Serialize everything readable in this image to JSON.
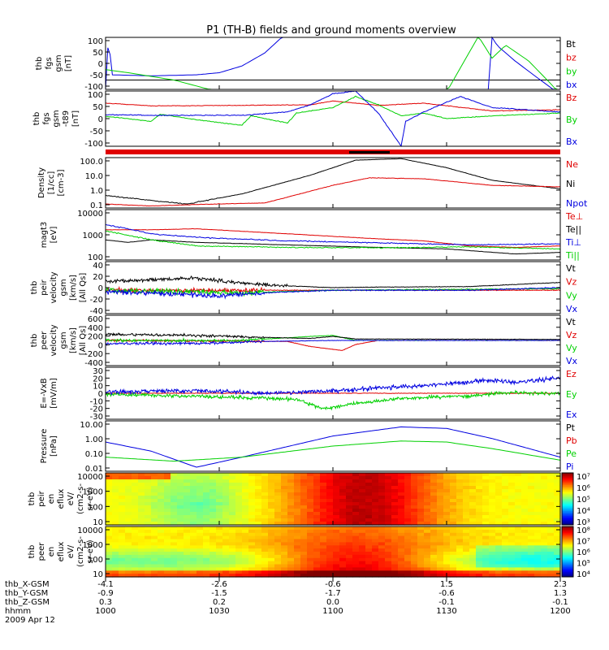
{
  "title": "P1 (TH-B) fields and ground moments overview",
  "colors": {
    "black": "#000000",
    "red": "#e00000",
    "green": "#00d000",
    "blue": "#0000e0"
  },
  "panels": [
    {
      "id": "fgs",
      "ylabel": [
        "thb",
        "fgs",
        "gsm",
        "[nT]"
      ],
      "yticks": [
        "100",
        "50",
        "0",
        "-50",
        "-100"
      ],
      "legend": [
        {
          "t": "Bt",
          "c": "black"
        },
        {
          "t": "bz",
          "c": "red"
        },
        {
          "t": "by",
          "c": "green"
        },
        {
          "t": "bx",
          "c": "blue"
        }
      ]
    },
    {
      "id": "fgs2",
      "ylabel": [
        "thb",
        "fgs",
        "gsm",
        "-t89",
        "[nT]"
      ],
      "yticks": [
        "100",
        "50",
        "0",
        "-50",
        "-100"
      ],
      "legend": [
        {
          "t": "Bz",
          "c": "red"
        },
        {
          "t": "By",
          "c": "green"
        },
        {
          "t": "Bx",
          "c": "blue"
        }
      ]
    },
    {
      "id": "dens",
      "ylabel": [
        "Density",
        "[1/cc]",
        "[cm-3]"
      ],
      "yticks": [
        "100.0",
        "10.0",
        "1.0",
        "0.1"
      ],
      "legend": [
        {
          "t": "Ne",
          "c": "red"
        },
        {
          "t": "Ni",
          "c": "black"
        },
        {
          "t": "Npot",
          "c": "blue"
        }
      ]
    },
    {
      "id": "temp",
      "ylabel": [
        "magt3",
        "[eV]"
      ],
      "yticks": [
        "10000",
        "1000",
        "100"
      ],
      "legend": [
        {
          "t": "Te⊥",
          "c": "red"
        },
        {
          "t": "Te||",
          "c": "black"
        },
        {
          "t": "Ti⊥",
          "c": "blue"
        },
        {
          "t": "Ti||",
          "c": "green"
        }
      ]
    },
    {
      "id": "vi",
      "ylabel": [
        "thb",
        "peir",
        "velocity",
        "gsm",
        "[km/s]",
        "[All Qs]"
      ],
      "yticks": [
        "40",
        "20",
        "0",
        "-20",
        "-40"
      ],
      "legend": [
        {
          "t": "Vt",
          "c": "black"
        },
        {
          "t": "Vz",
          "c": "red"
        },
        {
          "t": "Vy",
          "c": "green"
        },
        {
          "t": "Vx",
          "c": "blue"
        }
      ]
    },
    {
      "id": "ve",
      "ylabel": [
        "thb",
        "peer",
        "velocity",
        "gsm",
        "[km/s]",
        "[All Qs]"
      ],
      "yticks": [
        "600",
        "400",
        "200",
        "0",
        "-200",
        "-400"
      ],
      "legend": [
        {
          "t": "Vt",
          "c": "black"
        },
        {
          "t": "Vz",
          "c": "red"
        },
        {
          "t": "Vy",
          "c": "green"
        },
        {
          "t": "Vx",
          "c": "blue"
        }
      ]
    },
    {
      "id": "ef",
      "ylabel": [
        "E=-VxB",
        "[mV/m]"
      ],
      "yticks": [
        "30",
        "20",
        "10",
        "0",
        "-10",
        "-20",
        "-30"
      ],
      "legend": [
        {
          "t": "Ez",
          "c": "red"
        },
        {
          "t": "Ey",
          "c": "green"
        },
        {
          "t": "Ex",
          "c": "blue"
        }
      ]
    },
    {
      "id": "pres",
      "ylabel": [
        "Pressure",
        "[nPa]"
      ],
      "yticks": [
        "10.00",
        "1.00",
        "0.10",
        "0.01"
      ],
      "legend": [
        {
          "t": "Pt",
          "c": "black"
        },
        {
          "t": "Pb",
          "c": "red"
        },
        {
          "t": "Pe",
          "c": "green"
        },
        {
          "t": "Pi",
          "c": "blue"
        }
      ]
    },
    {
      "id": "spi",
      "ylabel": [
        "thb",
        "peir",
        "en",
        "eflux",
        "eV/",
        "(cm2-s-",
        "sr-eV)"
      ],
      "yticks": [
        "10000",
        "1000",
        "100",
        "10"
      ],
      "colorbar": [
        "10⁷",
        "10⁶",
        "10⁵",
        "10⁴",
        "10³"
      ]
    },
    {
      "id": "spe",
      "ylabel": [
        "thb",
        "peer",
        "en",
        "eflux",
        "eV/",
        "(cm2-s-",
        "sr-eV)"
      ],
      "yticks": [
        "10000",
        "1000",
        "100",
        "10"
      ],
      "colorbar": [
        "10⁸",
        "10⁷",
        "10⁶",
        "10⁵",
        "10⁴"
      ]
    }
  ],
  "footer": {
    "labels": [
      "thb_X-GSM",
      "thb_Y-GSM",
      "thb_Z-GSM",
      "hhmm",
      "2009 Apr 12"
    ],
    "columns": [
      [
        "-4.1",
        "-0.9",
        "0.3",
        "1000"
      ],
      [
        "-2.6",
        "-1.5",
        "0.2",
        "1030"
      ],
      [
        "-0.6",
        "-1.7",
        "0.0",
        "1100"
      ],
      [
        "1.5",
        "-0.6",
        "-0.1",
        "1130"
      ],
      [
        "2.3",
        "1.3",
        "-0.1",
        "1200"
      ]
    ]
  },
  "chart_data": {
    "type": "line",
    "title": "P1 (TH-B) fields and ground moments overview",
    "x_ticks": [
      "1000",
      "1030",
      "1100",
      "1130",
      "1200"
    ],
    "xlim": [
      "1000",
      "1200"
    ],
    "panels": [
      {
        "ylabel": "thb fgs gsm [nT]",
        "ylim": [
          -100,
          100
        ],
        "series": [
          {
            "name": "bx",
            "x": [
              1000,
              1001,
              1010,
              1020,
              1030,
              1040,
              1050,
              1135,
              1136,
              1140,
              1150,
              1200
            ],
            "y": [
              -110,
              100,
              -95,
              -90,
              -80,
              -40,
              110,
              110,
              100,
              60,
              30,
              -100
            ]
          },
          {
            "name": "by",
            "x": [
              1000,
              1005,
              1020,
              1030,
              1040,
              1120,
              1130,
              1136,
              1140,
              1150,
              1200
            ],
            "y": [
              -40,
              -42,
              -60,
              -80,
              -110,
              -110,
              100,
              100,
              70,
              30,
              -120
            ]
          }
        ]
      },
      {
        "ylabel": "thb fgs gsm -t89 [nT]",
        "ylim": [
          -120,
          100
        ],
        "series": [
          {
            "name": "Bz",
            "x": [
              1000,
              1030,
              1050,
              1100,
              1110,
              1120,
              1130,
              1140,
              1150,
              1200
            ],
            "y": [
              20,
              22,
              30,
              35,
              40,
              25,
              30,
              10,
              20,
              20
            ]
          },
          {
            "name": "By",
            "x": [
              1000,
              1030,
              1050,
              1100,
              1110,
              1120,
              1130,
              1140,
              1150,
              1200
            ],
            "y": [
              0,
              -30,
              -10,
              20,
              60,
              -5,
              0,
              5,
              10,
              10
            ]
          },
          {
            "name": "Bx",
            "x": [
              1000,
              1030,
              1050,
              1100,
              1110,
              1120,
              1130,
              1140,
              1150,
              1200
            ],
            "y": [
              5,
              0,
              20,
              60,
              110,
              -120,
              40,
              20,
              10,
              15
            ]
          }
        ]
      },
      {
        "ylabel": "Density [1/cc]",
        "scale": "log",
        "ylim": [
          0.1,
          100
        ],
        "series": [
          {
            "name": "Ni",
            "x": [
              1000,
              1020,
              1040,
              1100,
              1110,
              1120,
              1140,
              1200
            ],
            "y": [
              0.5,
              0.15,
              1,
              40,
              100,
              60,
              5,
              0.3
            ]
          },
          {
            "name": "Ne",
            "x": [
              1000,
              1020,
              1040,
              1100,
              1120,
              1140,
              1200
            ],
            "y": [
              0.2,
              0.1,
              0.15,
              2,
              8,
              5,
              2
            ]
          }
        ]
      },
      {
        "ylabel": "magt3 [eV]",
        "scale": "log",
        "ylim": [
          100,
          10000
        ],
        "series": [
          {
            "name": "Te⊥",
            "x": [
              1000,
              1030,
              1100,
              1130,
              1150,
              1200
            ],
            "y": [
              1500,
              2000,
              1500,
              800,
              300,
              300
            ]
          },
          {
            "name": "Te||",
            "x": [
              1000,
              1020,
              1040,
              1100,
              1140,
              1200
            ],
            "y": [
              800,
              500,
              450,
              300,
              250,
              150
            ]
          },
          {
            "name": "Ti⊥",
            "x": [
              1000,
              1020,
              1100,
              1140,
              1200
            ],
            "y": [
              2500,
              900,
              500,
              300,
              300
            ]
          },
          {
            "name": "Ti||",
            "x": [
              1000,
              1020,
              1100,
              1140,
              1200
            ],
            "y": [
              1500,
              500,
              300,
              250,
              200
            ]
          }
        ]
      },
      {
        "ylabel": "thb peir velocity gsm [km/s]",
        "ylim": [
          -40,
          40
        ],
        "series": [
          {
            "name": "Vt",
            "x": [
              1000,
              1020,
              1040,
              1100,
              1200
            ],
            "y": [
              15,
              20,
              8,
              3,
              10
            ]
          }
        ]
      },
      {
        "ylabel": "thb peer velocity gsm [km/s]",
        "ylim": [
          -500,
          600
        ],
        "series": [
          {
            "name": "Vt",
            "x": [
              1000,
              1030,
              1100,
              1200
            ],
            "y": [
              120,
              80,
              50,
              30
            ]
          }
        ]
      },
      {
        "ylabel": "E=-VxB [mV/m]",
        "ylim": [
          -30,
          30
        ],
        "series": [
          {
            "name": "Ey",
            "x": [
              1000,
              1030,
              1100,
              1110,
              1130,
              1200
            ],
            "y": [
              -3,
              -5,
              -10,
              -20,
              -2,
              0
            ]
          },
          {
            "name": "Ex",
            "x": [
              1000,
              1030,
              1100,
              1130,
              1145,
              1200
            ],
            "y": [
              2,
              0,
              3,
              8,
              15,
              20
            ]
          }
        ]
      },
      {
        "ylabel": "Pressure [nPa]",
        "scale": "log",
        "ylim": [
          0.01,
          10
        ],
        "series": [
          {
            "name": "Pi",
            "x": [
              1000,
              1020,
              1040,
              1100,
              1120,
              1140,
              1200
            ],
            "y": [
              0.15,
              0.01,
              0.1,
              2,
              5,
              2,
              0.05
            ]
          },
          {
            "name": "Pe",
            "x": [
              1000,
              1020,
              1040,
              1100,
              1120,
              1140,
              1200
            ],
            "y": [
              0.02,
              0.02,
              0.03,
              0.1,
              0.2,
              0.15,
              0.02
            ]
          }
        ]
      }
    ]
  }
}
